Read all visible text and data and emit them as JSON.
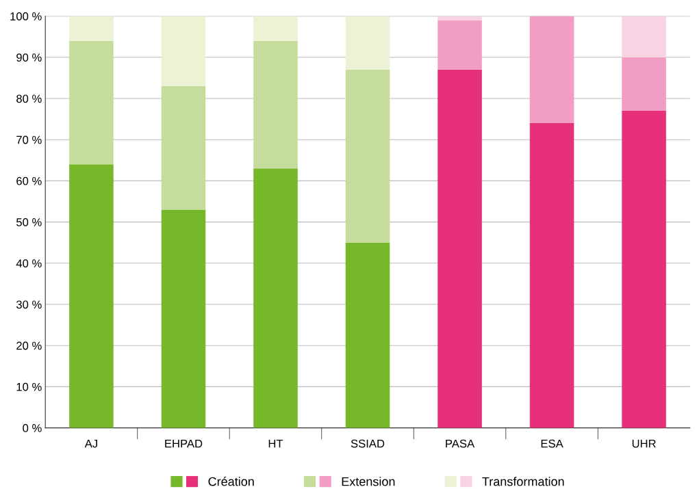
{
  "chart_data": {
    "type": "bar",
    "stacked": true,
    "categories": [
      "AJ",
      "EHPAD",
      "HT",
      "SSIAD",
      "PASA",
      "ESA",
      "UHR"
    ],
    "series": [
      {
        "name": "Création",
        "colors": [
          "#77b82a",
          "#77b82a",
          "#77b82a",
          "#77b82a",
          "#e6317a",
          "#e6317a",
          "#e6317a"
        ],
        "values": [
          64,
          53,
          63,
          45,
          87,
          74,
          77
        ]
      },
      {
        "name": "Extension",
        "colors": [
          "#c6dc9c",
          "#c6dc9c",
          "#c6dc9c",
          "#c6dc9c",
          "#f29ec4",
          "#f29ec4",
          "#f29ec4"
        ],
        "values": [
          30,
          30,
          31,
          42,
          12,
          26,
          13
        ]
      },
      {
        "name": "Transformation",
        "colors": [
          "#ecf2d4",
          "#ecf2d4",
          "#ecf2d4",
          "#ecf2d4",
          "#f8d3e4",
          "#f8d3e4",
          "#f8d3e4"
        ],
        "values": [
          6,
          17,
          6,
          13,
          1,
          0,
          10
        ]
      }
    ],
    "ylim": [
      0,
      100
    ],
    "yticks": [
      {
        "value": 0,
        "label": "0 %"
      },
      {
        "value": 10,
        "label": "10 %"
      },
      {
        "value": 20,
        "label": "20 %"
      },
      {
        "value": 30,
        "label": "30 %"
      },
      {
        "value": 40,
        "label": "40 %"
      },
      {
        "value": 50,
        "label": "50 %"
      },
      {
        "value": 60,
        "label": "60 %"
      },
      {
        "value": 70,
        "label": "70 %"
      },
      {
        "value": 80,
        "label": "80 %"
      },
      {
        "value": 90,
        "label": "90 %"
      },
      {
        "value": 100,
        "label": "100 %"
      }
    ],
    "grid": "y",
    "legend": "bottom"
  }
}
